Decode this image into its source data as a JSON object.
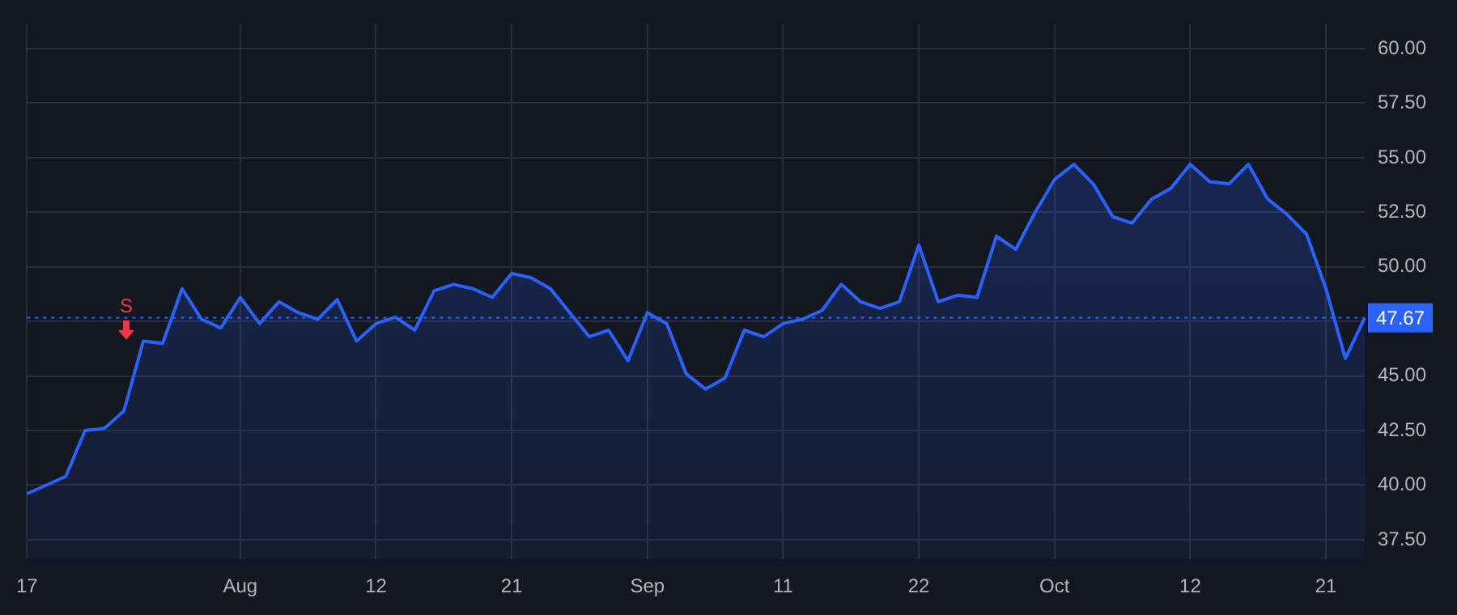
{
  "chart_data": {
    "type": "area",
    "categories": [
      "17",
      null,
      null,
      null,
      null,
      null,
      null,
      null,
      null,
      null,
      null,
      "Aug",
      null,
      null,
      null,
      null,
      null,
      null,
      "12",
      null,
      null,
      null,
      null,
      null,
      null,
      "21",
      null,
      null,
      null,
      null,
      null,
      null,
      "Sep",
      null,
      null,
      null,
      null,
      null,
      null,
      "11",
      null,
      null,
      null,
      null,
      null,
      null,
      "22",
      null,
      null,
      null,
      null,
      null,
      null,
      "Oct",
      null,
      null,
      null,
      null,
      null,
      null,
      "12",
      null,
      null,
      null,
      null,
      null,
      null,
      "21",
      null,
      null
    ],
    "series": [
      {
        "color": "#2962ff",
        "values": [
          39.6,
          40.0,
          40.4,
          42.5,
          42.6,
          43.4,
          46.6,
          46.5,
          49.0,
          47.6,
          47.2,
          48.6,
          47.4,
          48.4,
          47.9,
          47.6,
          48.5,
          46.6,
          47.4,
          47.7,
          47.1,
          48.9,
          49.2,
          49.0,
          48.6,
          49.7,
          49.5,
          49.0,
          47.9,
          46.8,
          47.1,
          45.7,
          47.9,
          47.4,
          45.1,
          44.4,
          44.9,
          47.1,
          46.8,
          47.4,
          47.6,
          48.0,
          49.2,
          48.4,
          48.1,
          48.4,
          51.0,
          48.4,
          48.7,
          48.6,
          51.4,
          50.8,
          52.5,
          54.0,
          54.7,
          53.8,
          52.3,
          52.0,
          53.1,
          53.6,
          54.7,
          53.9,
          53.8,
          54.7,
          53.1,
          52.4,
          51.5,
          49.0,
          45.8,
          47.67
        ]
      }
    ],
    "ylim": [
      36.6,
      61.1
    ],
    "yticks": [
      {
        "value": 37.5,
        "label": "37.50"
      },
      {
        "value": 40,
        "label": "40.00"
      },
      {
        "value": 42.5,
        "label": "42.50"
      },
      {
        "value": 45,
        "label": "45.00"
      },
      {
        "value": 47.5,
        "label": null
      },
      {
        "value": 50,
        "label": "50.00"
      },
      {
        "value": 52.5,
        "label": "52.50"
      },
      {
        "value": 55,
        "label": "55.00"
      },
      {
        "value": 57.5,
        "label": "57.50"
      },
      {
        "value": 60,
        "label": "60.00"
      }
    ],
    "ref_lines": [
      {
        "axis": "y",
        "value": 47.67,
        "label": "47.67",
        "color": "#2962ff",
        "line_style": "dotted"
      }
    ],
    "annotations": [
      "S"
    ],
    "grid": true,
    "legend": false,
    "marker": "none",
    "line_style": "solid"
  }
}
